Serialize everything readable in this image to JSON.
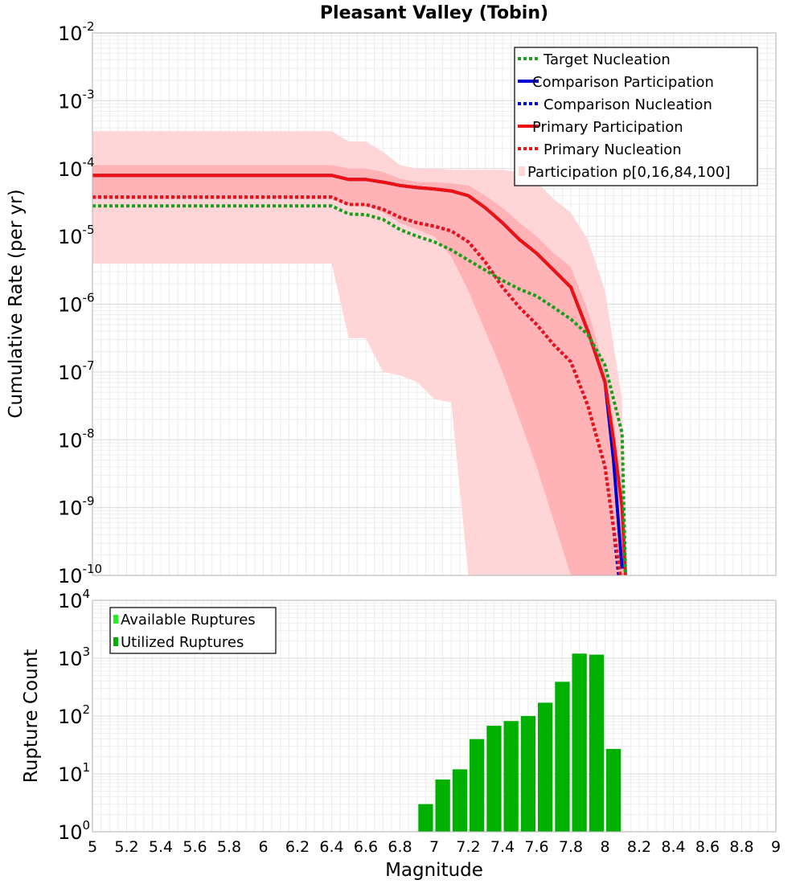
{
  "chart_data": [
    {
      "type": "line",
      "title": "Pleasant Valley (Tobin)",
      "xlabel": "",
      "ylabel": "Cumulative Rate (per yr)",
      "xlim": [
        5,
        9
      ],
      "ylim_log10": [
        -10,
        -2
      ],
      "yscale": "log",
      "ytick_labels": [
        {
          "base": "10",
          "exp": "-2"
        },
        {
          "base": "10",
          "exp": "-3"
        },
        {
          "base": "10",
          "exp": "-4"
        },
        {
          "base": "10",
          "exp": "-5"
        },
        {
          "base": "10",
          "exp": "-6"
        },
        {
          "base": "10",
          "exp": "-7"
        },
        {
          "base": "10",
          "exp": "-8"
        },
        {
          "base": "10",
          "exp": "-9"
        },
        {
          "base": "10",
          "exp": "-10"
        }
      ],
      "legend_position": "top-right",
      "legend": [
        {
          "label": "Target Nucleation",
          "color": "#1a9e1a",
          "style": "dotted"
        },
        {
          "label": "Comparison Participation",
          "color": "#0000d0",
          "style": "solid"
        },
        {
          "label": "Comparison Nucleation",
          "color": "#0000d0",
          "style": "dotted"
        },
        {
          "label": "Primary Participation",
          "color": "#ee1111",
          "style": "solid"
        },
        {
          "label": "Primary Nucleation",
          "color": "#ee1111",
          "style": "dotted"
        },
        {
          "label": "Participation p[0,16,84,100]",
          "color": "#ffd6d8",
          "style": "band"
        }
      ],
      "series": [
        {
          "name": "Target Nucleation",
          "color": "#1a9e1a",
          "dash": "dotted",
          "log10": true,
          "x": [
            5.0,
            6.4,
            6.5,
            6.6,
            6.7,
            6.8,
            6.9,
            7.0,
            7.1,
            7.2,
            7.3,
            7.4,
            7.5,
            7.6,
            7.7,
            7.8,
            7.9,
            8.0,
            8.05,
            8.1,
            8.12
          ],
          "y": [
            -4.55,
            -4.55,
            -4.67,
            -4.68,
            -4.75,
            -4.9,
            -5.0,
            -5.08,
            -5.2,
            -5.35,
            -5.5,
            -5.65,
            -5.78,
            -5.88,
            -6.05,
            -6.22,
            -6.45,
            -6.9,
            -7.4,
            -7.9,
            -10.0
          ]
        },
        {
          "name": "Comparison Participation",
          "color": "#0000d0",
          "dash": "solid",
          "log10": true,
          "x": [
            5.0,
            6.4,
            6.5,
            6.6,
            6.7,
            6.8,
            6.9,
            7.0,
            7.1,
            7.2,
            7.3,
            7.4,
            7.5,
            7.6,
            7.7,
            7.8,
            7.9,
            8.0,
            8.05,
            8.1
          ],
          "y": [
            -4.1,
            -4.1,
            -4.16,
            -4.16,
            -4.2,
            -4.25,
            -4.28,
            -4.3,
            -4.33,
            -4.4,
            -4.58,
            -4.8,
            -5.05,
            -5.25,
            -5.5,
            -5.75,
            -6.4,
            -7.15,
            -8.3,
            -9.9
          ]
        },
        {
          "name": "Comparison Nucleation",
          "color": "#0000d0",
          "dash": "dotted",
          "log10": true,
          "x": [
            5.0,
            6.4,
            6.5,
            6.6,
            6.7,
            6.8,
            6.9,
            7.0,
            7.1,
            7.2,
            7.3,
            7.4,
            7.5,
            7.6,
            7.7,
            7.8,
            7.9,
            8.0,
            8.05,
            8.08
          ],
          "y": [
            -4.42,
            -4.42,
            -4.53,
            -4.53,
            -4.6,
            -4.72,
            -4.8,
            -4.85,
            -4.92,
            -5.08,
            -5.38,
            -5.75,
            -6.05,
            -6.3,
            -6.6,
            -6.85,
            -7.5,
            -8.4,
            -9.3,
            -10.0
          ]
        },
        {
          "name": "Primary Participation",
          "color": "#ee1111",
          "dash": "solid",
          "log10": true,
          "x": [
            5.0,
            6.4,
            6.5,
            6.6,
            6.7,
            6.8,
            6.9,
            7.0,
            7.1,
            7.2,
            7.3,
            7.4,
            7.5,
            7.6,
            7.7,
            7.8,
            7.9,
            8.0,
            8.05,
            8.1,
            8.12
          ],
          "y": [
            -4.1,
            -4.1,
            -4.16,
            -4.16,
            -4.2,
            -4.25,
            -4.28,
            -4.3,
            -4.33,
            -4.4,
            -4.58,
            -4.8,
            -5.05,
            -5.25,
            -5.5,
            -5.75,
            -6.4,
            -7.15,
            -8.0,
            -9.0,
            -10.0
          ]
        },
        {
          "name": "Primary Nucleation",
          "color": "#ee1111",
          "dash": "dotted",
          "log10": true,
          "x": [
            5.0,
            6.4,
            6.5,
            6.6,
            6.7,
            6.8,
            6.9,
            7.0,
            7.1,
            7.2,
            7.3,
            7.4,
            7.5,
            7.6,
            7.7,
            7.8,
            7.9,
            8.0,
            8.05,
            8.09
          ],
          "y": [
            -4.42,
            -4.42,
            -4.53,
            -4.53,
            -4.6,
            -4.72,
            -4.8,
            -4.85,
            -4.92,
            -5.08,
            -5.38,
            -5.75,
            -6.05,
            -6.3,
            -6.6,
            -6.85,
            -7.5,
            -8.4,
            -9.3,
            -10.0
          ]
        }
      ],
      "bands": [
        {
          "name": "p0-p100",
          "color": "#ffd6d8",
          "log10": true,
          "x": [
            5.0,
            6.4,
            6.5,
            6.6,
            6.7,
            6.8,
            6.9,
            7.0,
            7.1,
            7.2,
            7.3,
            7.4,
            7.5,
            7.6,
            7.7,
            7.8,
            7.9,
            8.0,
            8.1,
            8.12
          ],
          "lower": [
            -5.4,
            -5.4,
            -6.5,
            -6.5,
            -7.0,
            -7.05,
            -7.15,
            -7.4,
            -7.45,
            -10.0,
            -10.0,
            -10.0,
            -10.0,
            -10.0,
            -10.0,
            -10.0,
            -10.0,
            -10.0,
            -10.0,
            -10.0
          ],
          "upper": [
            -3.45,
            -3.45,
            -3.6,
            -3.6,
            -3.75,
            -3.95,
            -4.0,
            -4.0,
            -4.02,
            -4.02,
            -4.02,
            -4.02,
            -4.05,
            -4.2,
            -4.45,
            -4.65,
            -5.05,
            -5.8,
            -7.4,
            -10.0
          ]
        },
        {
          "name": "p16-p84",
          "color": "#ffb3b6",
          "log10": true,
          "x": [
            5.0,
            6.4,
            6.5,
            6.6,
            6.7,
            6.8,
            6.9,
            7.0,
            7.1,
            7.2,
            7.3,
            7.4,
            7.5,
            7.6,
            7.7,
            7.8,
            7.9,
            8.0,
            8.05,
            8.1,
            8.12
          ],
          "lower": [
            -4.45,
            -4.45,
            -4.55,
            -4.55,
            -4.65,
            -4.8,
            -4.9,
            -5.0,
            -5.3,
            -5.8,
            -6.4,
            -7.0,
            -7.7,
            -8.4,
            -9.2,
            -10.0,
            -10.0,
            -10.0,
            -10.0,
            -10.0,
            -10.0
          ],
          "upper": [
            -3.95,
            -3.95,
            -4.0,
            -4.0,
            -4.05,
            -4.15,
            -4.2,
            -4.2,
            -4.22,
            -4.25,
            -4.4,
            -4.58,
            -4.8,
            -5.0,
            -5.25,
            -5.45,
            -6.1,
            -6.95,
            -7.7,
            -8.8,
            -10.0
          ]
        }
      ]
    },
    {
      "type": "bar",
      "title": "",
      "xlabel": "Magnitude",
      "ylabel": "Rupture Count",
      "xlim": [
        5,
        9
      ],
      "ylim_log10": [
        0,
        4
      ],
      "yscale": "log",
      "xtick_labels": [
        "5",
        "5.2",
        "5.4",
        "5.6",
        "5.8",
        "6",
        "6.2",
        "6.4",
        "6.6",
        "6.8",
        "7",
        "7.2",
        "7.4",
        "7.6",
        "7.8",
        "8",
        "8.2",
        "8.4",
        "8.6",
        "8.8",
        "9"
      ],
      "ytick_labels": [
        {
          "base": "10",
          "exp": "0"
        },
        {
          "base": "10",
          "exp": "1"
        },
        {
          "base": "10",
          "exp": "2"
        },
        {
          "base": "10",
          "exp": "3"
        },
        {
          "base": "10",
          "exp": "4"
        }
      ],
      "legend_position": "top-left",
      "legend": [
        {
          "label": "Available Ruptures",
          "color": "#22ee22"
        },
        {
          "label": "Utilized Ruptures",
          "color": "#00b000"
        }
      ],
      "bin_width": 0.1,
      "bin_centers": [
        6.65,
        6.85,
        6.95,
        7.05,
        7.15,
        7.25,
        7.35,
        7.45,
        7.55,
        7.65,
        7.75,
        7.85,
        7.95,
        8.05
      ],
      "values": [
        1,
        1,
        3,
        8,
        12,
        40,
        68,
        82,
        100,
        170,
        390,
        1200,
        1150,
        27
      ]
    }
  ]
}
